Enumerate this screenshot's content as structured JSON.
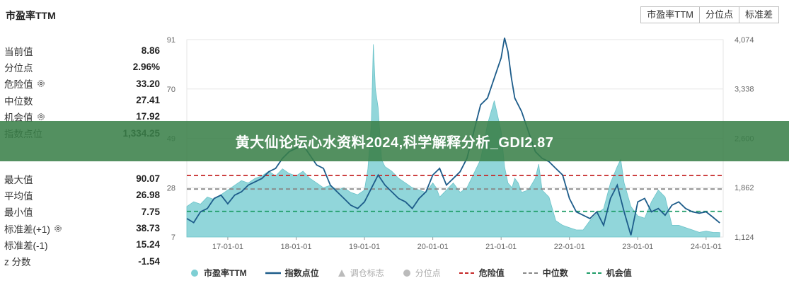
{
  "panel": {
    "title": "市盈率TTM",
    "stats_top": [
      {
        "label": "当前值",
        "value": "8.86",
        "gear": false
      },
      {
        "label": "分位点",
        "value": "2.96%",
        "gear": false
      },
      {
        "label": "危险值",
        "value": "33.20",
        "gear": true
      },
      {
        "label": "中位数",
        "value": "27.41",
        "gear": false
      },
      {
        "label": "机会值",
        "value": "17.92",
        "gear": true
      },
      {
        "label": "指数点位",
        "value": "1,334.25",
        "gear": false
      }
    ],
    "stats_bottom": [
      {
        "label": "最大值",
        "value": "90.07",
        "gear": false
      },
      {
        "label": "平均值",
        "value": "26.98",
        "gear": false
      },
      {
        "label": "最小值",
        "value": "7.75",
        "gear": false
      },
      {
        "label": "标准差(+1)",
        "value": "38.73",
        "gear": true
      },
      {
        "label": "标准差(-1)",
        "value": "15.24",
        "gear": false
      },
      {
        "label": "z 分数",
        "value": "-1.54",
        "gear": false
      }
    ]
  },
  "tabs": [
    "市盈率TTM",
    "分位点",
    "标准差"
  ],
  "banner": {
    "text": "黄大仙论坛心水资料2024,科学解释分析_GDI2.87"
  },
  "legend": [
    {
      "label": "市盈率TTM",
      "type": "area-dot",
      "color": "#7ecfd4",
      "muted": false
    },
    {
      "label": "指数点位",
      "type": "line",
      "color": "#1d5c8a",
      "muted": false
    },
    {
      "label": "调仓标志",
      "type": "triangle",
      "color": "#bbbbbb",
      "muted": true
    },
    {
      "label": "分位点",
      "type": "dot",
      "color": "#bbbbbb",
      "muted": true
    },
    {
      "label": "危险值",
      "type": "dash",
      "color": "#c62828",
      "muted": false
    },
    {
      "label": "中位数",
      "type": "dash",
      "color": "#888888",
      "muted": false
    },
    {
      "label": "机会值",
      "type": "dash",
      "color": "#1f9d68",
      "muted": false
    }
  ],
  "colors": {
    "area": "#7ecfd4",
    "index_line": "#1d5c8a",
    "danger": "#c62828",
    "median": "#888888",
    "opportunity": "#1f9d68",
    "grid": "#e6e6e6"
  },
  "chart_data": {
    "type": "area",
    "x_ticks": [
      "17-01-01",
      "18-01-01",
      "19-01-01",
      "20-01-01",
      "21-01-01",
      "22-01-01",
      "23-01-01",
      "24-01-01"
    ],
    "x_range": [
      2016.4,
      2024.25
    ],
    "y_left": {
      "ticks": [
        7,
        28,
        49,
        70,
        91
      ],
      "range": [
        7,
        91
      ]
    },
    "y_right": {
      "ticks": [
        "1,124",
        "1,862",
        "2,600",
        "3,338",
        "4,074"
      ],
      "tick_values": [
        1124,
        1862,
        2600,
        3338,
        4074
      ],
      "range": [
        1124,
        4074
      ]
    },
    "reference_lines": {
      "danger": 33.2,
      "median": 27.41,
      "opportunity": 17.92
    },
    "series": [
      {
        "name": "市盈率TTM",
        "axis": "left",
        "kind": "area",
        "x": [
          2016.4,
          2016.5,
          2016.6,
          2016.7,
          2016.8,
          2016.9,
          2017.0,
          2017.1,
          2017.2,
          2017.3,
          2017.4,
          2017.5,
          2017.6,
          2017.7,
          2017.8,
          2017.9,
          2018.0,
          2018.1,
          2018.2,
          2018.3,
          2018.4,
          2018.5,
          2018.6,
          2018.7,
          2018.8,
          2018.9,
          2019.0,
          2019.05,
          2019.1,
          2019.13,
          2019.16,
          2019.2,
          2019.25,
          2019.3,
          2019.4,
          2019.5,
          2019.6,
          2019.7,
          2019.8,
          2019.9,
          2020.0,
          2020.05,
          2020.1,
          2020.2,
          2020.3,
          2020.4,
          2020.5,
          2020.6,
          2020.7,
          2020.8,
          2020.9,
          2021.0,
          2021.05,
          2021.1,
          2021.13,
          2021.16,
          2021.2,
          2021.25,
          2021.3,
          2021.4,
          2021.5,
          2021.55,
          2021.6,
          2021.7,
          2021.8,
          2021.9,
          2022.0,
          2022.1,
          2022.2,
          2022.3,
          2022.4,
          2022.5,
          2022.6,
          2022.7,
          2022.75,
          2022.8,
          2022.9,
          2023.0,
          2023.1,
          2023.2,
          2023.3,
          2023.4,
          2023.5,
          2023.6,
          2023.7,
          2023.8,
          2023.9,
          2024.0,
          2024.1,
          2024.2
        ],
        "values": [
          20,
          22,
          21,
          24,
          23,
          25,
          27,
          29,
          31,
          30,
          32,
          33,
          35,
          33,
          36,
          34,
          33,
          35,
          32,
          30,
          28,
          29,
          27,
          28,
          26,
          25,
          27,
          36,
          55,
          89,
          70,
          62,
          40,
          37,
          35,
          32,
          30,
          28,
          27,
          26,
          30,
          28,
          24,
          27,
          30,
          26,
          28,
          34,
          40,
          55,
          65,
          52,
          37,
          30,
          29,
          28,
          32,
          30,
          26,
          27,
          32,
          38,
          27,
          24,
          14,
          12,
          11,
          10,
          10,
          14,
          17,
          19,
          30,
          37,
          40,
          30,
          20,
          16,
          15,
          22,
          27,
          24,
          12,
          12,
          11,
          10,
          9,
          9.5,
          9,
          8.9
        ]
      },
      {
        "name": "指数点位",
        "axis": "right",
        "kind": "line",
        "x": [
          2016.4,
          2016.5,
          2016.6,
          2016.7,
          2016.8,
          2016.9,
          2017.0,
          2017.1,
          2017.2,
          2017.3,
          2017.4,
          2017.5,
          2017.6,
          2017.7,
          2017.8,
          2017.9,
          2018.0,
          2018.1,
          2018.2,
          2018.3,
          2018.4,
          2018.5,
          2018.6,
          2018.7,
          2018.8,
          2018.9,
          2019.0,
          2019.1,
          2019.2,
          2019.3,
          2019.4,
          2019.5,
          2019.6,
          2019.7,
          2019.8,
          2019.9,
          2020.0,
          2020.1,
          2020.2,
          2020.3,
          2020.4,
          2020.5,
          2020.6,
          2020.7,
          2020.8,
          2020.9,
          2021.0,
          2021.05,
          2021.1,
          2021.15,
          2021.2,
          2021.3,
          2021.4,
          2021.5,
          2021.6,
          2021.7,
          2021.8,
          2021.9,
          2022.0,
          2022.1,
          2022.2,
          2022.3,
          2022.4,
          2022.5,
          2022.6,
          2022.7,
          2022.8,
          2022.9,
          2023.0,
          2023.1,
          2023.2,
          2023.3,
          2023.4,
          2023.5,
          2023.6,
          2023.7,
          2023.8,
          2023.9,
          2024.0,
          2024.1,
          2024.2
        ],
        "values": [
          1400,
          1340,
          1500,
          1550,
          1700,
          1750,
          1620,
          1750,
          1800,
          1900,
          1950,
          2000,
          2100,
          2150,
          2300,
          2400,
          2450,
          2500,
          2350,
          2200,
          2150,
          1900,
          1800,
          1700,
          1600,
          1550,
          1650,
          1850,
          2050,
          1900,
          1800,
          1700,
          1650,
          1550,
          1700,
          1800,
          2050,
          2150,
          1900,
          2000,
          2100,
          2300,
          2700,
          3100,
          3200,
          3500,
          3800,
          4100,
          3900,
          3500,
          3200,
          3000,
          2700,
          2400,
          2300,
          2250,
          2150,
          2050,
          1700,
          1500,
          1450,
          1400,
          1500,
          1300,
          1700,
          1900,
          1500,
          1150,
          1650,
          1700,
          1500,
          1550,
          1450,
          1600,
          1650,
          1550,
          1500,
          1480,
          1500,
          1420,
          1334
        ]
      }
    ]
  }
}
